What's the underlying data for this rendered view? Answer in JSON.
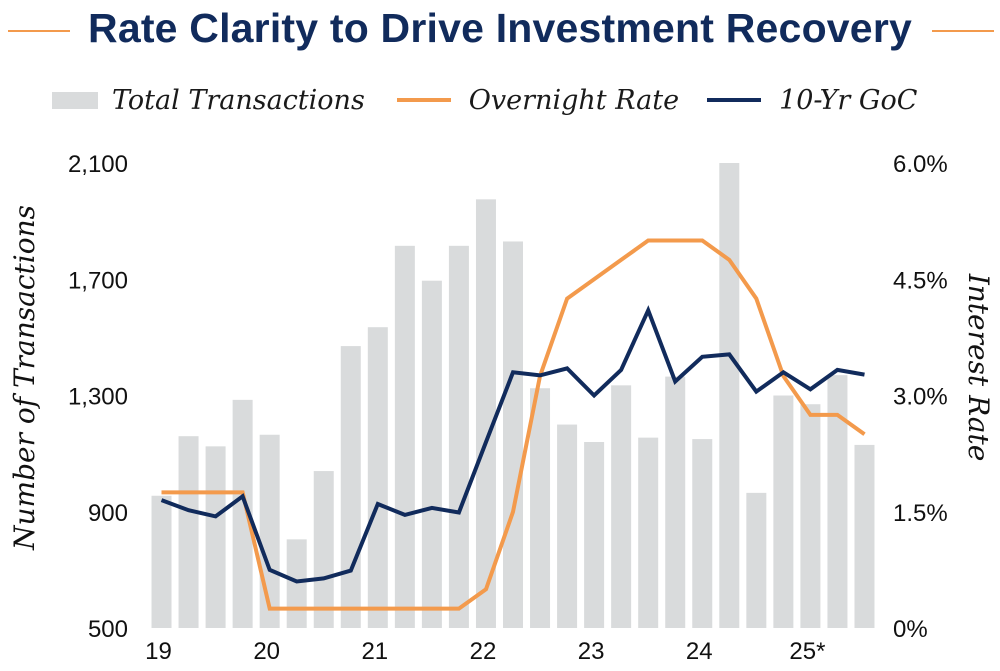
{
  "title": "Rate Clarity to Drive Investment Recovery",
  "colors": {
    "title": "#112b5c",
    "bars": "#d9dbdc",
    "overnight": "#f39a4c",
    "goc": "#112b5c"
  },
  "legend": [
    {
      "label": "Total Transactions",
      "kind": "bar",
      "color": "#d9dbdc"
    },
    {
      "label": "Overnight Rate",
      "kind": "line",
      "color": "#f39a4c"
    },
    {
      "label": "10-Yr GoC",
      "kind": "line",
      "color": "#112b5c"
    }
  ],
  "chart_data": {
    "type": "bar",
    "title": "Rate Clarity to Drive Investment Recovery",
    "ylabel": "Number of Transactions",
    "ylabel_right": "Interest Rate",
    "ylim": [
      500,
      2100
    ],
    "ylim_right": [
      0,
      6.0
    ],
    "yticks": [
      "500",
      "900",
      "1,300",
      "1,700",
      "2,100"
    ],
    "yticks_right": [
      "0%",
      "1.5%",
      "3.0%",
      "4.5%",
      "6.0%"
    ],
    "xtick_labels": [
      {
        "label": "19",
        "index": 0
      },
      {
        "label": "20",
        "index": 4
      },
      {
        "label": "21",
        "index": 8
      },
      {
        "label": "22",
        "index": 12
      },
      {
        "label": "23",
        "index": 16
      },
      {
        "label": "24",
        "index": 20
      },
      {
        "label": "25*",
        "index": 24
      }
    ],
    "series": [
      {
        "name": "Total Transactions",
        "kind": "bar",
        "values": [
          955,
          1160,
          1125,
          1285,
          1165,
          805,
          1040,
          1470,
          1535,
          1815,
          1695,
          1815,
          1975,
          1830,
          1325,
          1200,
          1140,
          1335,
          1155,
          1365,
          1150,
          2100,
          965,
          1300,
          1270,
          1370,
          1130
        ]
      },
      {
        "name": "Overnight Rate",
        "kind": "line",
        "values": [
          1.75,
          1.75,
          1.75,
          1.75,
          0.25,
          0.25,
          0.25,
          0.25,
          0.25,
          0.25,
          0.25,
          0.25,
          0.5,
          1.5,
          3.25,
          4.25,
          4.5,
          4.75,
          5.0,
          5.0,
          5.0,
          4.75,
          4.25,
          3.25,
          2.75,
          2.75,
          2.5
        ]
      },
      {
        "name": "10-Yr GoC",
        "kind": "line",
        "values": [
          1.65,
          1.52,
          1.44,
          1.7,
          0.75,
          0.6,
          0.64,
          0.74,
          1.6,
          1.46,
          1.55,
          1.49,
          2.4,
          3.3,
          3.26,
          3.35,
          3.0,
          3.33,
          4.1,
          3.18,
          3.5,
          3.53,
          3.05,
          3.3,
          3.08,
          3.33,
          3.27
        ]
      }
    ]
  }
}
